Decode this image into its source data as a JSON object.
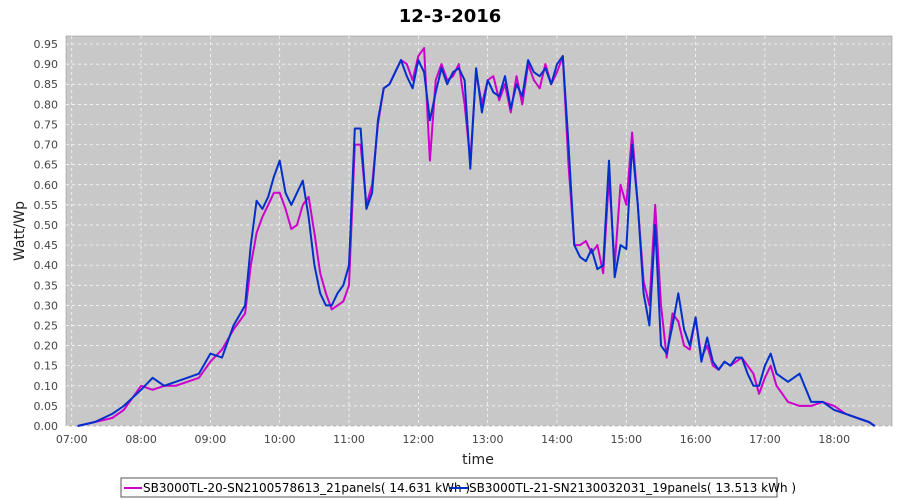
{
  "chart_data": {
    "type": "line",
    "title": "12-3-2016",
    "xlabel": "time",
    "ylabel": "Watt/Wp",
    "xlim": [
      "06:55",
      "18:50"
    ],
    "ylim": [
      0,
      0.97
    ],
    "x_ticks": [
      "07:00",
      "08:00",
      "09:00",
      "10:00",
      "11:00",
      "12:00",
      "13:00",
      "14:00",
      "15:00",
      "16:00",
      "17:00",
      "18:00"
    ],
    "y_ticks": [
      "0.00",
      "0.05",
      "0.10",
      "0.15",
      "0.20",
      "0.25",
      "0.30",
      "0.35",
      "0.40",
      "0.45",
      "0.50",
      "0.55",
      "0.60",
      "0.65",
      "0.70",
      "0.75",
      "0.80",
      "0.85",
      "0.90",
      "0.95"
    ],
    "grid": true,
    "legend_position": "bottom",
    "background": "#c8c8c8",
    "series": [
      {
        "name": "SB3000TL-20-SN2100578613_21panels( 14.631 kWh )",
        "color": "#cc00cc",
        "x": [
          "07:05",
          "07:20",
          "07:35",
          "07:45",
          "08:00",
          "08:10",
          "08:20",
          "08:30",
          "08:40",
          "08:50",
          "09:00",
          "09:10",
          "09:20",
          "09:30",
          "09:35",
          "09:40",
          "09:45",
          "09:50",
          "09:55",
          "10:00",
          "10:05",
          "10:10",
          "10:15",
          "10:20",
          "10:25",
          "10:30",
          "10:35",
          "10:40",
          "10:45",
          "10:50",
          "10:55",
          "11:00",
          "11:05",
          "11:10",
          "11:15",
          "11:20",
          "11:25",
          "11:30",
          "11:35",
          "11:40",
          "11:45",
          "11:50",
          "11:55",
          "12:00",
          "12:05",
          "12:10",
          "12:15",
          "12:20",
          "12:25",
          "12:30",
          "12:35",
          "12:40",
          "12:45",
          "12:50",
          "12:55",
          "13:00",
          "13:05",
          "13:10",
          "13:15",
          "13:20",
          "13:25",
          "13:30",
          "13:35",
          "13:40",
          "13:45",
          "13:50",
          "13:55",
          "14:00",
          "14:05",
          "14:10",
          "14:15",
          "14:20",
          "14:25",
          "14:30",
          "14:35",
          "14:40",
          "14:45",
          "14:50",
          "14:55",
          "15:00",
          "15:05",
          "15:10",
          "15:15",
          "15:20",
          "15:25",
          "15:30",
          "15:35",
          "15:40",
          "15:45",
          "15:50",
          "15:55",
          "16:00",
          "16:05",
          "16:10",
          "16:15",
          "16:20",
          "16:25",
          "16:30",
          "16:35",
          "16:40",
          "16:45",
          "16:50",
          "16:55",
          "17:00",
          "17:05",
          "17:10",
          "17:15",
          "17:20",
          "17:30",
          "17:40",
          "17:50",
          "18:00",
          "18:10",
          "18:20",
          "18:30",
          "18:35"
        ],
        "values": [
          0.0,
          0.01,
          0.02,
          0.04,
          0.1,
          0.09,
          0.1,
          0.1,
          0.11,
          0.12,
          0.16,
          0.19,
          0.24,
          0.28,
          0.4,
          0.48,
          0.52,
          0.55,
          0.58,
          0.58,
          0.54,
          0.49,
          0.5,
          0.55,
          0.57,
          0.48,
          0.38,
          0.33,
          0.29,
          0.3,
          0.31,
          0.35,
          0.7,
          0.7,
          0.55,
          0.6,
          0.75,
          0.84,
          0.85,
          0.88,
          0.91,
          0.9,
          0.86,
          0.92,
          0.94,
          0.66,
          0.86,
          0.9,
          0.86,
          0.87,
          0.9,
          0.8,
          0.66,
          0.88,
          0.8,
          0.86,
          0.87,
          0.81,
          0.85,
          0.78,
          0.87,
          0.8,
          0.9,
          0.86,
          0.84,
          0.9,
          0.85,
          0.88,
          0.92,
          0.65,
          0.45,
          0.45,
          0.46,
          0.43,
          0.45,
          0.38,
          0.62,
          0.4,
          0.6,
          0.55,
          0.73,
          0.55,
          0.36,
          0.3,
          0.55,
          0.3,
          0.17,
          0.28,
          0.26,
          0.2,
          0.19,
          0.27,
          0.17,
          0.2,
          0.15,
          0.14,
          0.16,
          0.15,
          0.16,
          0.17,
          0.15,
          0.13,
          0.08,
          0.12,
          0.15,
          0.1,
          0.08,
          0.06,
          0.05,
          0.05,
          0.06,
          0.05,
          0.03,
          0.02,
          0.01,
          0.0
        ]
      },
      {
        "name": "SB3000TL-21-SN2130032031_19panels( 13.513 kWh )",
        "color": "#0030cc",
        "x": [
          "07:05",
          "07:20",
          "07:35",
          "07:45",
          "08:00",
          "08:10",
          "08:20",
          "08:30",
          "08:40",
          "08:50",
          "09:00",
          "09:10",
          "09:20",
          "09:30",
          "09:35",
          "09:40",
          "09:45",
          "09:50",
          "09:55",
          "10:00",
          "10:05",
          "10:10",
          "10:15",
          "10:20",
          "10:25",
          "10:30",
          "10:35",
          "10:40",
          "10:45",
          "10:50",
          "10:55",
          "11:00",
          "11:05",
          "11:10",
          "11:15",
          "11:20",
          "11:25",
          "11:30",
          "11:35",
          "11:40",
          "11:45",
          "11:50",
          "11:55",
          "12:00",
          "12:05",
          "12:10",
          "12:15",
          "12:20",
          "12:25",
          "12:30",
          "12:35",
          "12:40",
          "12:45",
          "12:50",
          "12:55",
          "13:00",
          "13:05",
          "13:10",
          "13:15",
          "13:20",
          "13:25",
          "13:30",
          "13:35",
          "13:40",
          "13:45",
          "13:50",
          "13:55",
          "14:00",
          "14:05",
          "14:10",
          "14:15",
          "14:20",
          "14:25",
          "14:30",
          "14:35",
          "14:40",
          "14:45",
          "14:50",
          "14:55",
          "15:00",
          "15:05",
          "15:10",
          "15:15",
          "15:20",
          "15:25",
          "15:30",
          "15:35",
          "15:40",
          "15:45",
          "15:50",
          "15:55",
          "16:00",
          "16:05",
          "16:10",
          "16:15",
          "16:20",
          "16:25",
          "16:30",
          "16:35",
          "16:40",
          "16:45",
          "16:50",
          "16:55",
          "17:00",
          "17:05",
          "17:10",
          "17:15",
          "17:20",
          "17:30",
          "17:40",
          "17:50",
          "18:00",
          "18:10",
          "18:20",
          "18:30",
          "18:35"
        ],
        "values": [
          0.0,
          0.01,
          0.03,
          0.05,
          0.09,
          0.12,
          0.1,
          0.11,
          0.12,
          0.13,
          0.18,
          0.17,
          0.25,
          0.3,
          0.45,
          0.56,
          0.54,
          0.57,
          0.62,
          0.66,
          0.58,
          0.55,
          0.58,
          0.61,
          0.52,
          0.4,
          0.33,
          0.3,
          0.3,
          0.33,
          0.35,
          0.4,
          0.74,
          0.74,
          0.54,
          0.58,
          0.76,
          0.84,
          0.85,
          0.88,
          0.91,
          0.87,
          0.84,
          0.91,
          0.88,
          0.76,
          0.83,
          0.89,
          0.85,
          0.88,
          0.89,
          0.86,
          0.64,
          0.89,
          0.78,
          0.86,
          0.83,
          0.82,
          0.87,
          0.79,
          0.85,
          0.82,
          0.91,
          0.88,
          0.87,
          0.89,
          0.85,
          0.9,
          0.92,
          0.7,
          0.45,
          0.42,
          0.41,
          0.44,
          0.39,
          0.4,
          0.66,
          0.37,
          0.45,
          0.44,
          0.7,
          0.55,
          0.33,
          0.25,
          0.5,
          0.2,
          0.18,
          0.25,
          0.33,
          0.24,
          0.2,
          0.27,
          0.16,
          0.22,
          0.16,
          0.14,
          0.16,
          0.15,
          0.17,
          0.17,
          0.13,
          0.1,
          0.1,
          0.15,
          0.18,
          0.13,
          0.12,
          0.11,
          0.13,
          0.06,
          0.06,
          0.04,
          0.03,
          0.02,
          0.01,
          0.0
        ]
      }
    ]
  }
}
